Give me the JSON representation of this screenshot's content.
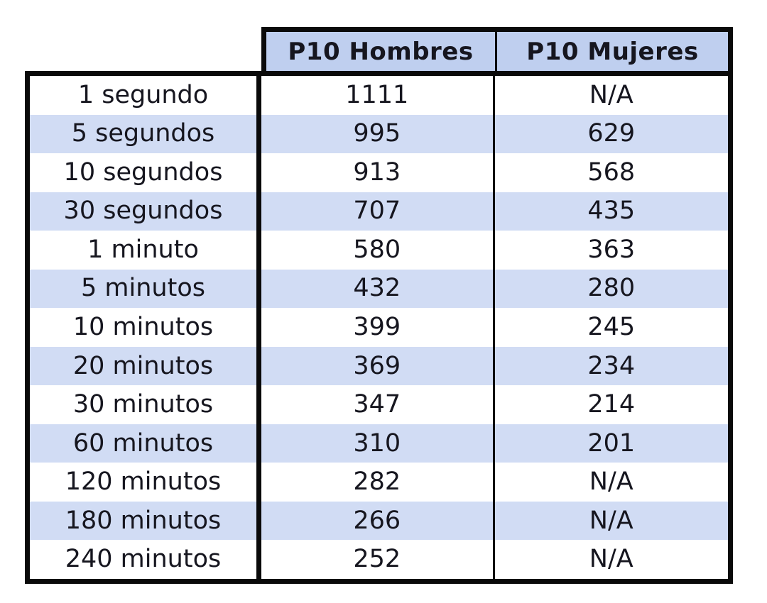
{
  "header": {
    "hombres": "P10 Hombres",
    "mujeres": "P10 Mujeres"
  },
  "colors": {
    "header_bg": "#bfcfef",
    "stripe": "#d1dcf4",
    "border": "#0a0a0a",
    "text": "#16161f",
    "page_bg": "#ffffff"
  },
  "chart_data": {
    "type": "table",
    "title": "",
    "columns": [
      "",
      "P10 Hombres",
      "P10 Mujeres"
    ],
    "rows": [
      [
        "1 segundo",
        "1111",
        "N/A"
      ],
      [
        "5 segundos",
        "995",
        "629"
      ],
      [
        "10 segundos",
        "913",
        "568"
      ],
      [
        "30 segundos",
        "707",
        "435"
      ],
      [
        "1 minuto",
        "580",
        "363"
      ],
      [
        "5 minutos",
        "432",
        "280"
      ],
      [
        "10 minutos",
        "399",
        "245"
      ],
      [
        "20 minutos",
        "369",
        "234"
      ],
      [
        "30 minutos",
        "347",
        "214"
      ],
      [
        "60 minutos",
        "310",
        "201"
      ],
      [
        "120 minutos",
        "282",
        "N/A"
      ],
      [
        "180 minutos",
        "266",
        "N/A"
      ],
      [
        "240 minutos",
        "252",
        "N/A"
      ]
    ],
    "layout_hints": {
      "striped_rows": "even rows (2nd, 4th, ...) have light periwinkle background",
      "header_spans": "value columns only; label column has no header",
      "alignment": "all cells centered"
    }
  }
}
